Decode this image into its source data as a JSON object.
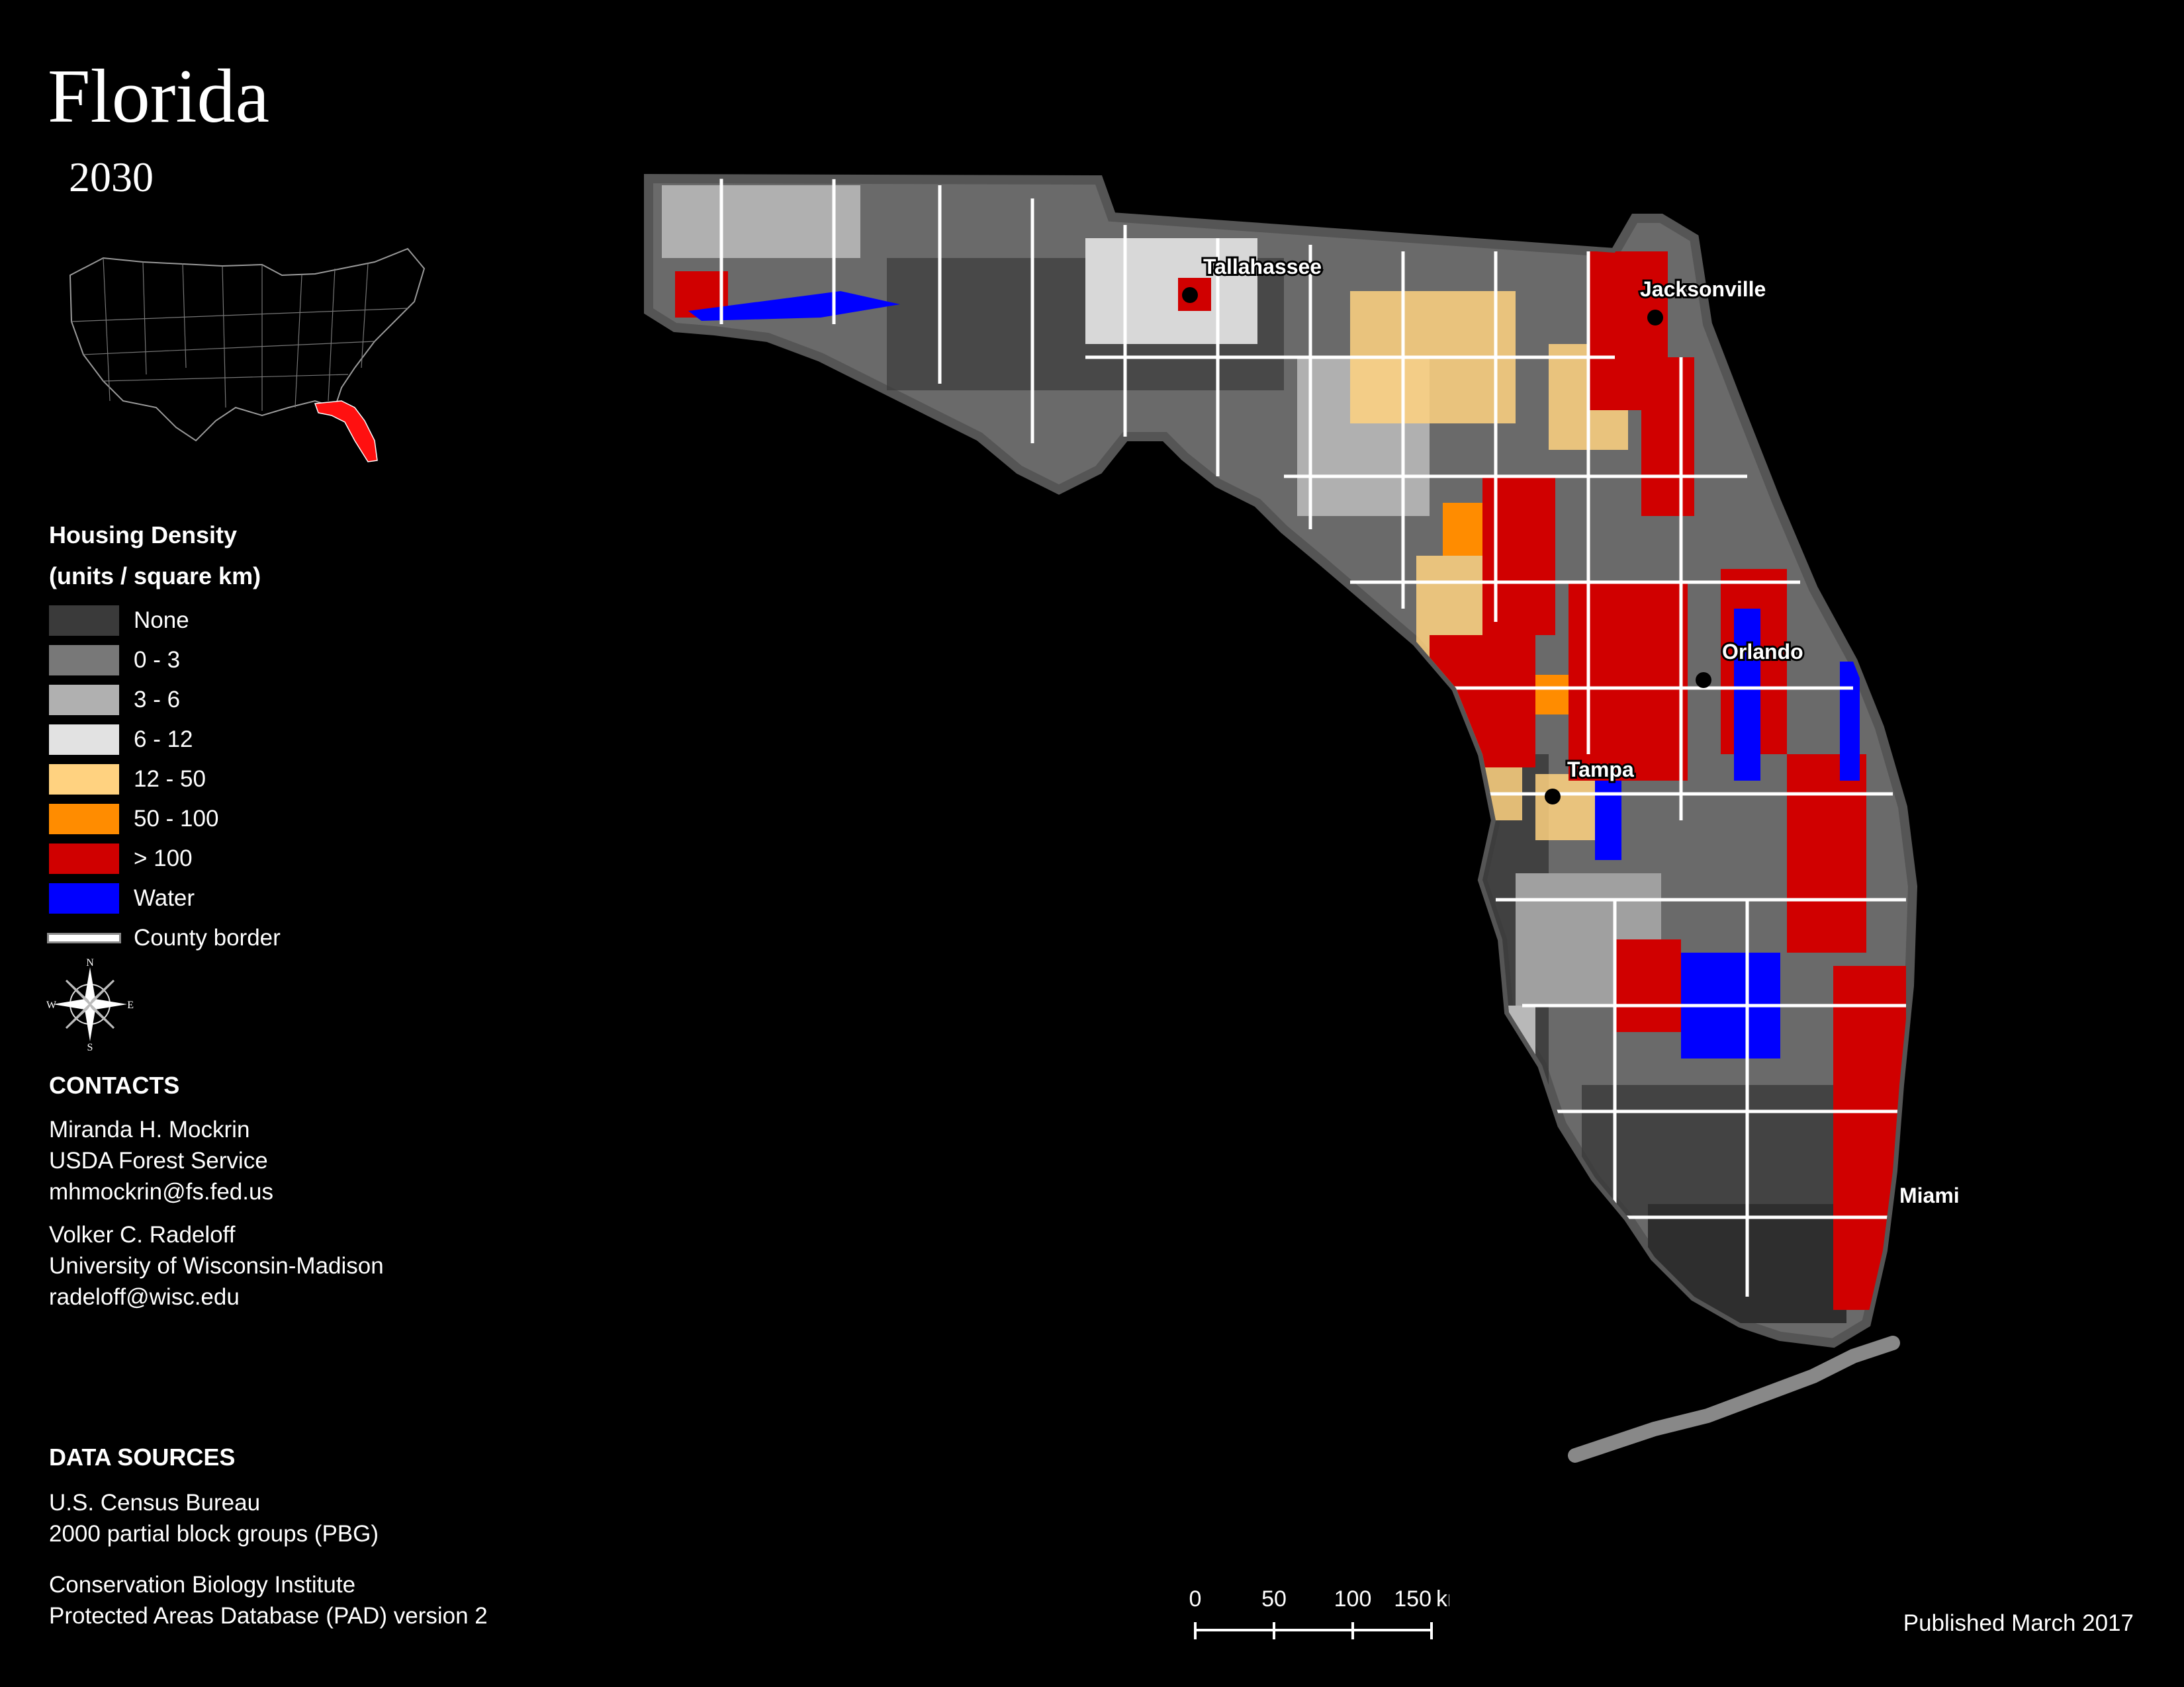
{
  "header": {
    "title": "Florida",
    "year": "2030"
  },
  "legend": {
    "title_line1": "Housing Density",
    "title_line2": "(units / square km)",
    "items": [
      {
        "label": "None",
        "color": "#3a3a3a"
      },
      {
        "label": "0 - 3",
        "color": "#787878"
      },
      {
        "label": "3 - 6",
        "color": "#b0b0b0"
      },
      {
        "label": "6 - 12",
        "color": "#e2e2e2"
      },
      {
        "label": "12 - 50",
        "color": "#ffd280"
      },
      {
        "label": "50 - 100",
        "color": "#ff8c00"
      },
      {
        "label": "> 100",
        "color": "#d00000"
      },
      {
        "label": "Water",
        "color": "#0000ff"
      }
    ],
    "county_border_label": "County border"
  },
  "compass": {
    "n": "N",
    "s": "S",
    "e": "E",
    "w": "W"
  },
  "contacts": {
    "heading": "CONTACTS",
    "people": [
      {
        "name": "Miranda H. Mockrin",
        "org": "USDA Forest Service",
        "email": "mhmockrin@fs.fed.us"
      },
      {
        "name": "Volker C. Radeloff",
        "org": "University of Wisconsin-Madison",
        "email": "radeloff@wisc.edu"
      }
    ]
  },
  "data_sources": {
    "heading": "DATA SOURCES",
    "lines": [
      "U.S. Census Bureau",
      "2000 partial block groups (PBG)",
      "Conservation Biology Institute",
      "Protected Areas Database (PAD) version 2"
    ]
  },
  "scale": {
    "ticks": [
      "0",
      "50",
      "100",
      "150"
    ],
    "unit": "km"
  },
  "published": "Published March 2017",
  "cities": [
    "Tallahassee",
    "Jacksonville",
    "Orlando",
    "Tampa",
    "Miami"
  ]
}
